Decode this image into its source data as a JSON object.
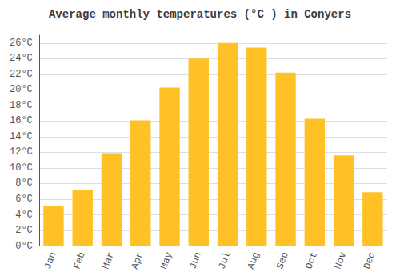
{
  "chart_data": {
    "type": "bar",
    "title": "Average monthly temperatures (°C ) in Conyers",
    "categories": [
      "Jan",
      "Feb",
      "Mar",
      "Apr",
      "May",
      "Jun",
      "Jul",
      "Aug",
      "Sep",
      "Oct",
      "Nov",
      "Dec"
    ],
    "values": [
      5.1,
      7.2,
      11.9,
      16.1,
      20.3,
      24.0,
      26.0,
      25.4,
      22.2,
      16.3,
      11.6,
      6.9
    ],
    "color": "#FFC125",
    "ylim": [
      0,
      27
    ],
    "yticks": [
      {
        "value": 0,
        "label": "0°C"
      },
      {
        "value": 2,
        "label": "2°C"
      },
      {
        "value": 4,
        "label": "4°C"
      },
      {
        "value": 6,
        "label": "6°C"
      },
      {
        "value": 8,
        "label": "8°C"
      },
      {
        "value": 10,
        "label": "10°C"
      },
      {
        "value": 12,
        "label": "12°C"
      },
      {
        "value": 14,
        "label": "14°C"
      },
      {
        "value": 16,
        "label": "16°C"
      },
      {
        "value": 18,
        "label": "18°C"
      },
      {
        "value": 20,
        "label": "20°C"
      },
      {
        "value": 22,
        "label": "22°C"
      },
      {
        "value": 24,
        "label": "24°C"
      },
      {
        "value": 26,
        "label": "26°C"
      }
    ],
    "grid": true
  }
}
